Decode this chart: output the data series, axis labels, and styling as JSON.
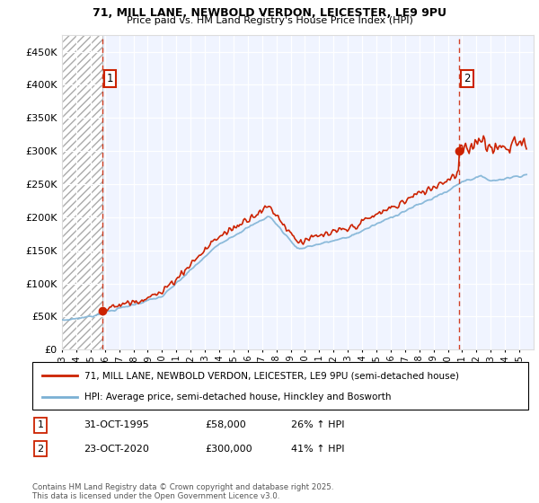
{
  "title_line1": "71, MILL LANE, NEWBOLD VERDON, LEICESTER, LE9 9PU",
  "title_line2": "Price paid vs. HM Land Registry's House Price Index (HPI)",
  "legend_line1": "71, MILL LANE, NEWBOLD VERDON, LEICESTER, LE9 9PU (semi-detached house)",
  "legend_line2": "HPI: Average price, semi-detached house, Hinckley and Bosworth",
  "annotation1_date": "31-OCT-1995",
  "annotation1_price": "£58,000",
  "annotation1_hpi": "26% ↑ HPI",
  "annotation2_date": "23-OCT-2020",
  "annotation2_price": "£300,000",
  "annotation2_hpi": "41% ↑ HPI",
  "footer": "Contains HM Land Registry data © Crown copyright and database right 2025.\nThis data is licensed under the Open Government Licence v3.0.",
  "purchase1_year": 1995.83,
  "purchase1_price": 58000,
  "purchase2_year": 2020.81,
  "purchase2_price": 300000,
  "red_color": "#cc2200",
  "blue_color": "#7ab0d4",
  "background_color": "#f0f4ff",
  "ylim_min": 0,
  "ylim_max": 475000,
  "xmin": 1993,
  "xmax": 2026,
  "yticks": [
    0,
    50000,
    100000,
    150000,
    200000,
    250000,
    300000,
    350000,
    400000,
    450000
  ]
}
